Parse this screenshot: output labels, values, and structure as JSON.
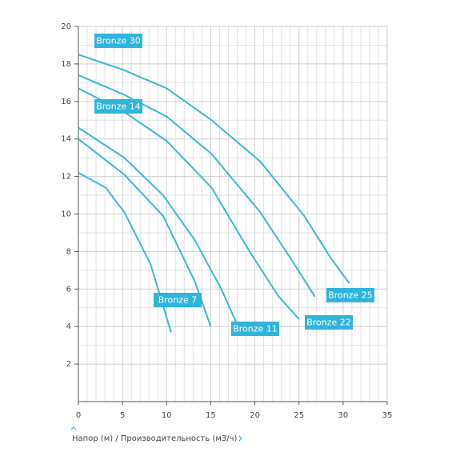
{
  "chart_data": {
    "type": "line",
    "x_label": "Напор (м) / Производительность (м3/ч)",
    "xlim": [
      0,
      35
    ],
    "xticks": [
      0,
      5,
      10,
      15,
      20,
      25,
      30,
      35
    ],
    "ylim": [
      0,
      20
    ],
    "yticks": [
      2,
      4,
      6,
      8,
      10,
      12,
      14,
      16,
      18,
      20
    ],
    "grid": true,
    "series": [
      {
        "name": "Bronze 30",
        "color": "#3ab8d8",
        "x": [
          0,
          5,
          10,
          15.1,
          20.6,
          25.6,
          28.4,
          30.7
        ],
        "values": [
          18.5,
          17.7,
          16.7,
          15.0,
          12.8,
          9.9,
          7.8,
          6.3
        ]
      },
      {
        "name": "Bronze 25",
        "color": "#3ab8d8",
        "x": [
          0,
          5,
          10,
          15.1,
          20.6,
          24.1,
          26.8
        ],
        "values": [
          17.4,
          16.4,
          15.2,
          13.2,
          10.1,
          7.6,
          5.6
        ]
      },
      {
        "name": "Bronze 22",
        "color": "#3ab8d8",
        "x": [
          0,
          5,
          10,
          15.1,
          19.4,
          22.7,
          25
        ],
        "values": [
          16.7,
          15.5,
          13.9,
          11.4,
          8.0,
          5.6,
          4.4
        ]
      },
      {
        "name": "Bronze 14",
        "color": "#3ab8d8",
        "x": [
          0,
          5.2,
          9.6,
          13.2,
          16.2,
          18.1
        ],
        "values": [
          14.6,
          13.0,
          11.0,
          8.6,
          6.0,
          4.0
        ]
      },
      {
        "name": "Bronze 11",
        "color": "#3ab8d8",
        "x": [
          0,
          5.2,
          9.6,
          13.2,
          15
        ],
        "values": [
          14.0,
          12.1,
          9.9,
          6.4,
          4.0
        ]
      },
      {
        "name": "Bronze 7",
        "color": "#3ab8d8",
        "x": [
          0,
          3.1,
          5.2,
          8.2,
          10.5
        ],
        "values": [
          12.2,
          11.4,
          10.1,
          7.3,
          3.7
        ]
      }
    ]
  }
}
